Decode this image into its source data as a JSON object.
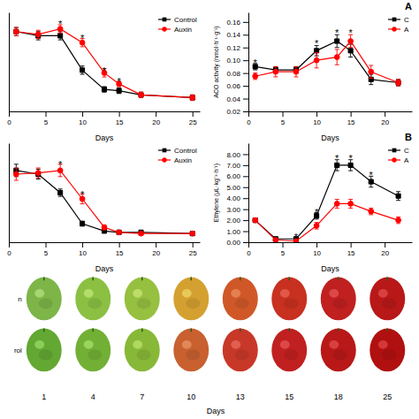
{
  "chart_data": [
    {
      "type": "line",
      "x_label": "Days",
      "x": [
        1,
        4,
        7,
        10,
        13,
        15,
        18,
        25
      ],
      "xlim": [
        0,
        26
      ],
      "xticks": [
        0,
        5,
        10,
        15,
        20,
        25
      ],
      "ylim": [
        0,
        0.72
      ],
      "tick_labels": "x",
      "legend": "upper right",
      "series": [
        {
          "name": "Control",
          "color": "black",
          "marker": "square",
          "values": [
            0.58,
            0.55,
            0.55,
            0.3,
            0.16,
            0.15,
            0.12,
            0.1
          ],
          "errors": [
            0.03,
            0.03,
            0.03,
            0.03,
            0.02,
            0.02,
            0.02,
            0.02
          ]
        },
        {
          "name": "Auxin",
          "color": "red",
          "marker": "circle",
          "values": [
            0.58,
            0.56,
            0.6,
            0.5,
            0.28,
            0.2,
            0.12,
            0.1
          ],
          "errors": [
            0.03,
            0.03,
            0.03,
            0.03,
            0.03,
            0.02,
            0.02,
            0.02
          ]
        }
      ],
      "annotations": [
        {
          "text": "*",
          "x": 7,
          "y": 0.64
        },
        {
          "text": "*",
          "x": 10,
          "y": 0.54
        },
        {
          "text": "*",
          "x": 13,
          "y": 0.305
        },
        {
          "text": "*",
          "x": 15,
          "y": 0.225
        }
      ]
    },
    {
      "type": "line",
      "title": "A",
      "x_label": "Days",
      "y_label": "ACO activity (nmol·h⁻¹·g⁻¹)",
      "x": [
        1,
        4,
        7,
        10,
        13,
        15,
        18,
        22
      ],
      "xlim": [
        0,
        24
      ],
      "xticks": [
        0,
        5,
        10,
        15,
        20
      ],
      "ylim": [
        0.02,
        0.175
      ],
      "yticks": [
        0.02,
        0.04,
        0.06,
        0.08,
        {
          "value": 0.1,
          "label": "0.10"
        },
        0.12,
        0.14,
        0.16
      ],
      "legend": "upper right",
      "series": [
        {
          "name": "C",
          "color": "black",
          "marker": "square",
          "values": [
            0.09,
            0.085,
            0.085,
            0.115,
            0.13,
            0.115,
            0.07,
            0.065
          ],
          "errors": [
            0.005,
            0.005,
            0.005,
            0.008,
            0.01,
            0.01,
            0.008,
            0.005
          ]
        },
        {
          "name": "A",
          "color": "red",
          "marker": "circle",
          "values": [
            0.075,
            0.082,
            0.082,
            0.1,
            0.105,
            0.13,
            0.082,
            0.065
          ],
          "errors": [
            0.005,
            0.008,
            0.008,
            0.012,
            0.012,
            0.01,
            0.01,
            0.005
          ]
        }
      ],
      "annotations": [
        {
          "text": "*",
          "x": 1,
          "y": 0.098
        },
        {
          "text": "*",
          "x": 10,
          "y": 0.128
        },
        {
          "text": "*",
          "x": 13,
          "y": 0.145
        },
        {
          "text": "*",
          "x": 15,
          "y": 0.145
        }
      ]
    },
    {
      "type": "line",
      "x_label": "Days",
      "x": [
        1,
        4,
        7,
        10,
        13,
        15,
        18,
        25
      ],
      "xlim": [
        0,
        26
      ],
      "xticks": [
        0,
        5,
        10,
        15,
        20,
        25
      ],
      "ylim": [
        0,
        8
      ],
      "tick_labels": "x",
      "legend": "upper right",
      "series": [
        {
          "name": "Control",
          "color": "black",
          "marker": "square",
          "values": [
            5.8,
            5.5,
            4.0,
            1.5,
            0.9,
            0.8,
            0.8,
            0.7
          ],
          "errors": [
            0.5,
            0.4,
            0.3,
            0.2,
            0.1,
            0.1,
            0.1,
            0.1
          ]
        },
        {
          "name": "Auxin",
          "color": "red",
          "marker": "circle",
          "values": [
            5.5,
            5.6,
            5.8,
            3.5,
            1.2,
            0.8,
            0.7,
            0.7
          ],
          "errors": [
            0.5,
            0.4,
            0.5,
            0.4,
            0.2,
            0.1,
            0.1,
            0.1
          ]
        }
      ],
      "annotations": [
        {
          "text": "*",
          "x": 7,
          "y": 6.35
        },
        {
          "text": "*",
          "x": 10,
          "y": 3.95
        }
      ]
    },
    {
      "type": "line",
      "title": "B",
      "x_label": "Days",
      "y_label": "Ethylene (μL·kg⁻¹·h⁻¹)",
      "x": [
        1,
        4,
        7,
        10,
        13,
        15,
        18,
        22
      ],
      "xlim": [
        0,
        24
      ],
      "xticks": [
        0,
        5,
        10,
        15,
        20
      ],
      "ylim": [
        0,
        9
      ],
      "yticks": [
        {
          "value": 0,
          "label": "0.00"
        },
        {
          "value": 1,
          "label": "1.00"
        },
        {
          "value": 2,
          "label": "2.00"
        },
        {
          "value": 3,
          "label": "3.00"
        },
        {
          "value": 4,
          "label": "4.00"
        },
        {
          "value": 5,
          "label": "5.00"
        },
        {
          "value": 6,
          "label": "6.00"
        },
        {
          "value": 7,
          "label": "7.00"
        },
        {
          "value": 8,
          "label": "8.00"
        }
      ],
      "legend": "upper right",
      "series": [
        {
          "name": "C",
          "color": "black",
          "marker": "square",
          "values": [
            2.0,
            0.3,
            0.3,
            2.4,
            7.0,
            7.0,
            5.5,
            4.2
          ],
          "errors": [
            0.2,
            0.1,
            0.1,
            0.3,
            0.5,
            0.5,
            0.5,
            0.4
          ]
        },
        {
          "name": "A",
          "color": "red",
          "marker": "circle",
          "values": [
            2.0,
            0.2,
            0.1,
            1.5,
            3.5,
            3.5,
            2.8,
            2.0
          ],
          "errors": [
            0.2,
            0.1,
            0.1,
            0.3,
            0.4,
            0.4,
            0.3,
            0.3
          ]
        }
      ],
      "annotations": [
        {
          "text": "*",
          "x": 7,
          "y": 0.55
        },
        {
          "text": "*",
          "x": 10,
          "y": 2.8
        },
        {
          "text": "*",
          "x": 13,
          "y": 7.7
        },
        {
          "text": "*",
          "x": 15,
          "y": 7.7
        },
        {
          "text": "*",
          "x": 18,
          "y": 6.2
        }
      ]
    },
    {
      "type": "swatch",
      "x_label": "Days",
      "categories": [
        1,
        4,
        7,
        10,
        13,
        15,
        18,
        25
      ],
      "series": [
        {
          "name": "n",
          "colors": [
            "#7db548",
            "#8bc043",
            "#96c040",
            "#d4a030",
            "#d05828",
            "#c83020",
            "#c02020",
            "#b81818"
          ]
        },
        {
          "name": "rol",
          "colors": [
            "#62a832",
            "#72b035",
            "#88b838",
            "#c86030",
            "#c83828",
            "#c02020",
            "#b81818",
            "#b01010"
          ]
        }
      ]
    }
  ]
}
